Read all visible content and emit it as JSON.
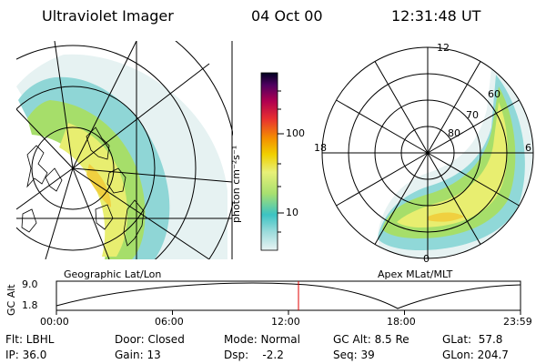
{
  "header": {
    "instrument": "Ultraviolet Imager",
    "date": "04 Oct 00",
    "time": "12:31:48 UT"
  },
  "colorbar": {
    "label": "photon cm⁻²s⁻¹",
    "ticks": [
      "100",
      "10"
    ],
    "colors": [
      "#e8f4f4",
      "#9fdcdc",
      "#3cc3c3",
      "#a8e070",
      "#e8f078",
      "#f0d000",
      "#f49000",
      "#e83030",
      "#b00050",
      "#500060",
      "#000020"
    ]
  },
  "left_map": {
    "caption": "Geographic Lat/Lon"
  },
  "right_map": {
    "caption": "Apex MLat/MLT",
    "mlt_labels": {
      "top": "12",
      "left": "18",
      "right": "6",
      "bottom": "0"
    },
    "mlat_labels": [
      "60",
      "70",
      "80"
    ]
  },
  "altitude_plot": {
    "ylabel": "GC Alt",
    "yticks": [
      "9.0",
      "1.8"
    ],
    "xticks": [
      "00:00",
      "06:00",
      "12:00",
      "18:00",
      "23:59"
    ],
    "current_time_marker": "12:31",
    "marker_color": "#e00000"
  },
  "status": {
    "flt": "Flt: LBHL",
    "ip": "IP: 36.0",
    "door": "Door: Closed",
    "gain": "Gain: 13",
    "mode": "Mode: Normal",
    "dsp": "Dsp:    -2.2",
    "gc_alt": "GC Alt: 8.5 Re",
    "seq": "Seq: 39",
    "glat": "GLat:  57.8",
    "glon": "GLon: 204.7"
  }
}
